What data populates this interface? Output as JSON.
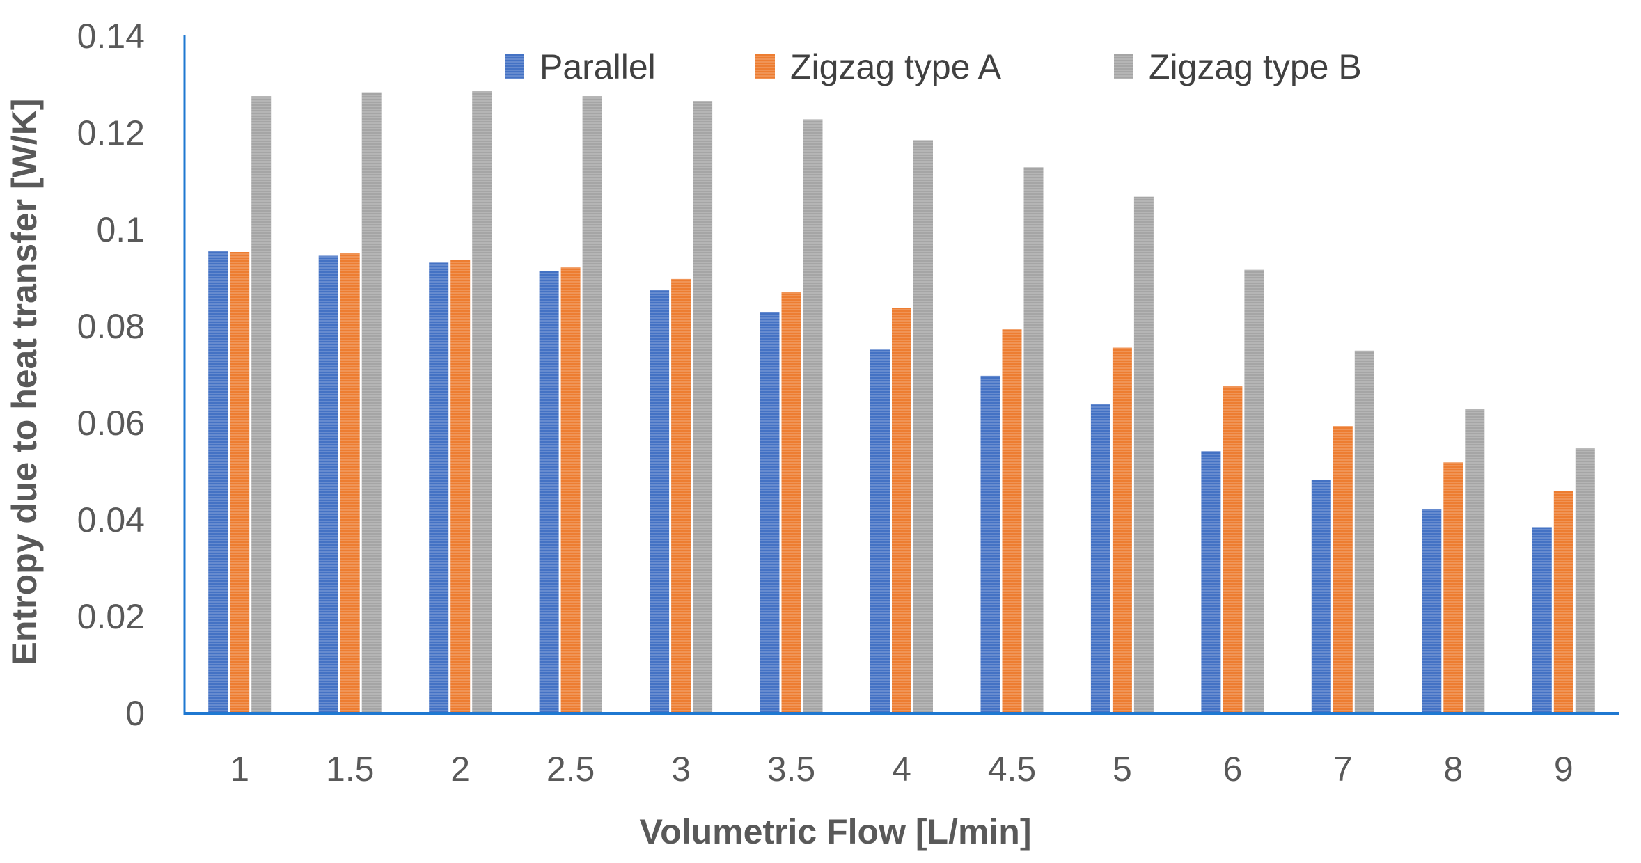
{
  "chart_data": {
    "type": "bar",
    "title": "",
    "xlabel": "Volumetric Flow [L/min]",
    "ylabel": "Entropy due to heat transfer [W/K]",
    "ylim": [
      0,
      0.14
    ],
    "yticks": [
      "0",
      "0.02",
      "0.04",
      "0.06",
      "0.08",
      "0.1",
      "0.12",
      "0.14"
    ],
    "grid": false,
    "legend_position": "top",
    "categories": [
      "1",
      "1.5",
      "2",
      "2.5",
      "3",
      "3.5",
      "4",
      "4.5",
      "5",
      "6",
      "7",
      "8",
      "9"
    ],
    "series": [
      {
        "name": "Parallel",
        "color": "#4472C4",
        "values": [
          0.0956,
          0.0946,
          0.0932,
          0.0914,
          0.0876,
          0.083,
          0.0752,
          0.0698,
          0.064,
          0.0542,
          0.0482,
          0.0422,
          0.0385
        ]
      },
      {
        "name": "Zigzag type A",
        "color": "#ED7D31",
        "values": [
          0.0954,
          0.0952,
          0.0938,
          0.0922,
          0.0898,
          0.0872,
          0.0838,
          0.0794,
          0.0756,
          0.0676,
          0.0594,
          0.0519,
          0.0459
        ]
      },
      {
        "name": "Zigzag type B",
        "color": "#A5A5A5",
        "values": [
          0.1276,
          0.1284,
          0.1286,
          0.1276,
          0.1266,
          0.1228,
          0.1185,
          0.1129,
          0.1068,
          0.0917,
          0.075,
          0.063,
          0.0548
        ]
      }
    ]
  },
  "colors": {
    "axis": "#1F78D1",
    "text": "#595959"
  }
}
